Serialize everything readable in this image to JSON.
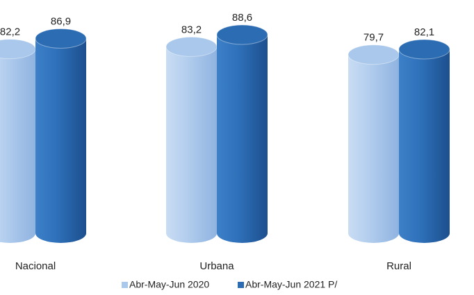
{
  "chart_data": {
    "type": "bar",
    "categories": [
      "Nacional",
      "Urbana",
      "Rural"
    ],
    "series": [
      {
        "name": "Abr-May-Jun 2020",
        "color": "#a9c8eb",
        "values": [
          82.2,
          83.2,
          79.7
        ],
        "value_labels": [
          "82,2",
          "83,2",
          "79,7"
        ]
      },
      {
        "name": "Abr-May-Jun 2021 P/",
        "color": "#2b6cb3",
        "values": [
          86.9,
          88.6,
          82.1
        ],
        "value_labels": [
          "86,9",
          "88,6",
          "82,1"
        ]
      }
    ]
  }
}
